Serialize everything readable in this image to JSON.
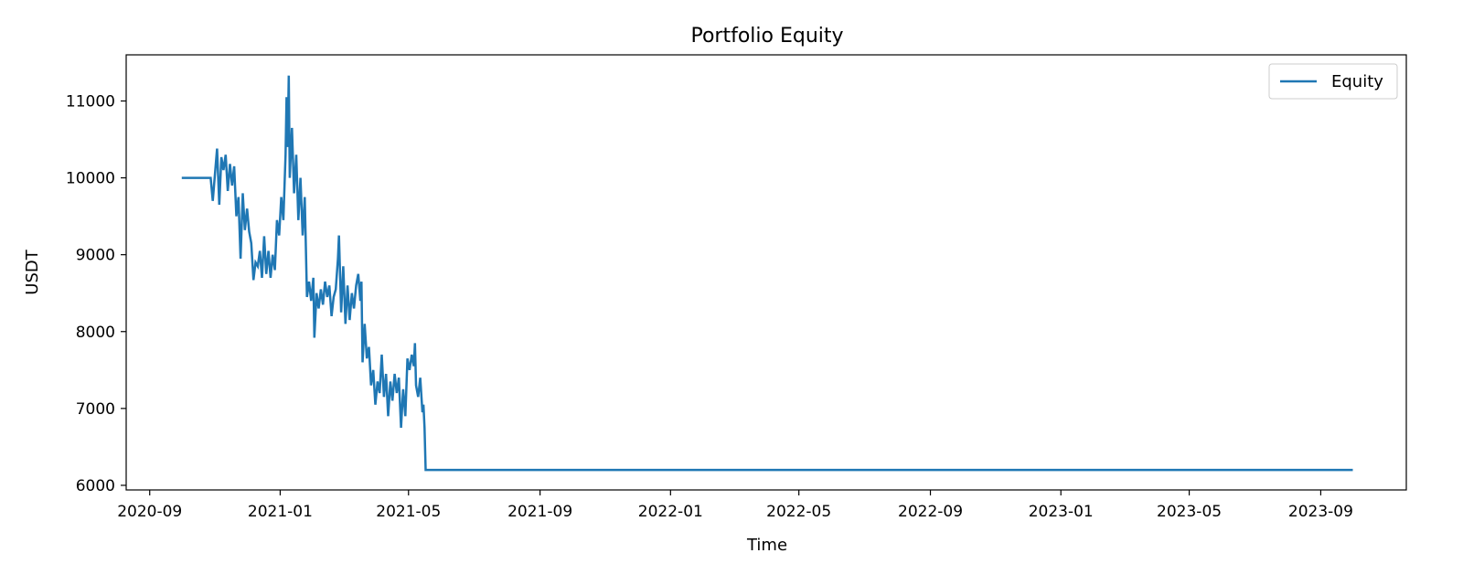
{
  "chart_data": {
    "type": "line",
    "title": "Portfolio Equity",
    "xlabel": "Time",
    "ylabel": "USDT",
    "x_axis_type": "date",
    "xlim": [
      "2020-08-10",
      "2023-11-20"
    ],
    "ylim": [
      5940,
      11600
    ],
    "x_ticks": [
      "2020-09",
      "2021-01",
      "2021-05",
      "2021-09",
      "2022-01",
      "2022-05",
      "2022-09",
      "2023-01",
      "2023-05",
      "2023-09"
    ],
    "y_ticks": [
      6000,
      7000,
      8000,
      9000,
      10000,
      11000
    ],
    "grid": false,
    "legend_position": "upper right",
    "colors": {
      "equity": "#1f77b4"
    },
    "series": [
      {
        "name": "Equity",
        "points": [
          [
            "2020-10-01",
            10000
          ],
          [
            "2020-10-28",
            10000
          ],
          [
            "2020-10-30",
            9700
          ],
          [
            "2020-11-01",
            10050
          ],
          [
            "2020-11-03",
            10380
          ],
          [
            "2020-11-05",
            9650
          ],
          [
            "2020-11-07",
            10270
          ],
          [
            "2020-11-09",
            10100
          ],
          [
            "2020-11-11",
            10300
          ],
          [
            "2020-11-13",
            9830
          ],
          [
            "2020-11-15",
            10180
          ],
          [
            "2020-11-17",
            9900
          ],
          [
            "2020-11-19",
            10150
          ],
          [
            "2020-11-21",
            9500
          ],
          [
            "2020-11-23",
            9750
          ],
          [
            "2020-11-25",
            8950
          ],
          [
            "2020-11-27",
            9800
          ],
          [
            "2020-11-29",
            9320
          ],
          [
            "2020-12-01",
            9600
          ],
          [
            "2020-12-03",
            9300
          ],
          [
            "2020-12-05",
            9150
          ],
          [
            "2020-12-07",
            8670
          ],
          [
            "2020-12-09",
            8900
          ],
          [
            "2020-12-11",
            8850
          ],
          [
            "2020-12-13",
            9050
          ],
          [
            "2020-12-15",
            8700
          ],
          [
            "2020-12-17",
            9240
          ],
          [
            "2020-12-19",
            8750
          ],
          [
            "2020-12-21",
            9050
          ],
          [
            "2020-12-23",
            8700
          ],
          [
            "2020-12-25",
            9000
          ],
          [
            "2020-12-27",
            8800
          ],
          [
            "2020-12-29",
            9450
          ],
          [
            "2020-12-31",
            9250
          ],
          [
            "2021-01-02",
            9750
          ],
          [
            "2021-01-04",
            9450
          ],
          [
            "2021-01-06",
            10300
          ],
          [
            "2021-01-07",
            11050
          ],
          [
            "2021-01-08",
            10400
          ],
          [
            "2021-01-09",
            11330
          ],
          [
            "2021-01-10",
            10000
          ],
          [
            "2021-01-12",
            10650
          ],
          [
            "2021-01-14",
            9800
          ],
          [
            "2021-01-16",
            10300
          ],
          [
            "2021-01-18",
            9450
          ],
          [
            "2021-01-20",
            10000
          ],
          [
            "2021-01-22",
            9250
          ],
          [
            "2021-01-24",
            9750
          ],
          [
            "2021-01-26",
            8450
          ],
          [
            "2021-01-28",
            8650
          ],
          [
            "2021-01-30",
            8400
          ],
          [
            "2021-02-01",
            8700
          ],
          [
            "2021-02-02",
            7920
          ],
          [
            "2021-02-04",
            8500
          ],
          [
            "2021-02-06",
            8300
          ],
          [
            "2021-02-08",
            8550
          ],
          [
            "2021-02-10",
            8350
          ],
          [
            "2021-02-12",
            8650
          ],
          [
            "2021-02-14",
            8450
          ],
          [
            "2021-02-16",
            8600
          ],
          [
            "2021-02-18",
            8200
          ],
          [
            "2021-02-20",
            8450
          ],
          [
            "2021-02-22",
            8550
          ],
          [
            "2021-02-24",
            8950
          ],
          [
            "2021-02-25",
            9250
          ],
          [
            "2021-02-27",
            8250
          ],
          [
            "2021-03-01",
            8850
          ],
          [
            "2021-03-03",
            8100
          ],
          [
            "2021-03-05",
            8600
          ],
          [
            "2021-03-07",
            8150
          ],
          [
            "2021-03-09",
            8500
          ],
          [
            "2021-03-11",
            8300
          ],
          [
            "2021-03-13",
            8600
          ],
          [
            "2021-03-15",
            8750
          ],
          [
            "2021-03-17",
            8400
          ],
          [
            "2021-03-18",
            8650
          ],
          [
            "2021-03-19",
            7600
          ],
          [
            "2021-03-21",
            8100
          ],
          [
            "2021-03-23",
            7650
          ],
          [
            "2021-03-25",
            7800
          ],
          [
            "2021-03-27",
            7300
          ],
          [
            "2021-03-29",
            7500
          ],
          [
            "2021-03-31",
            7050
          ],
          [
            "2021-04-02",
            7350
          ],
          [
            "2021-04-04",
            7200
          ],
          [
            "2021-04-06",
            7700
          ],
          [
            "2021-04-08",
            7150
          ],
          [
            "2021-04-10",
            7450
          ],
          [
            "2021-04-12",
            6900
          ],
          [
            "2021-04-14",
            7350
          ],
          [
            "2021-04-16",
            7100
          ],
          [
            "2021-04-18",
            7450
          ],
          [
            "2021-04-20",
            7200
          ],
          [
            "2021-04-22",
            7400
          ],
          [
            "2021-04-24",
            6750
          ],
          [
            "2021-04-26",
            7250
          ],
          [
            "2021-04-28",
            6900
          ],
          [
            "2021-04-30",
            7650
          ],
          [
            "2021-05-02",
            7500
          ],
          [
            "2021-05-04",
            7700
          ],
          [
            "2021-05-06",
            7550
          ],
          [
            "2021-05-07",
            7850
          ],
          [
            "2021-05-08",
            7300
          ],
          [
            "2021-05-10",
            7150
          ],
          [
            "2021-05-12",
            7400
          ],
          [
            "2021-05-14",
            6950
          ],
          [
            "2021-05-15",
            7050
          ],
          [
            "2021-05-16",
            6750
          ],
          [
            "2021-05-17",
            6200
          ],
          [
            "2023-10-01",
            6200
          ]
        ]
      }
    ]
  }
}
